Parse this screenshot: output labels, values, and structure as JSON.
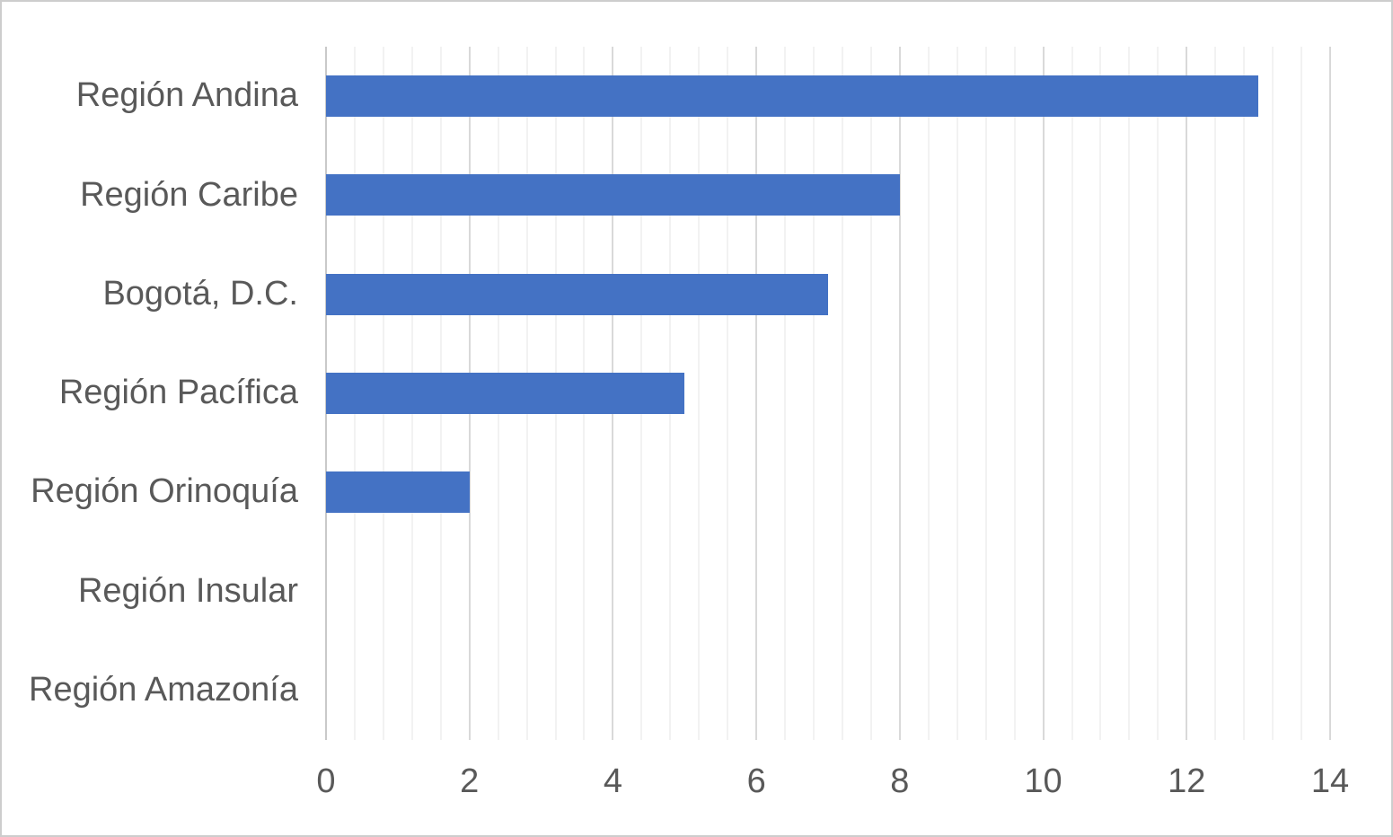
{
  "chart_data": {
    "type": "bar",
    "orientation": "horizontal",
    "title": "",
    "xlabel": "",
    "ylabel": "",
    "categories": [
      "Región Andina",
      "Región Caribe",
      "Bogotá, D.C.",
      "Región Pacífica",
      "Región Orinoquía",
      "Región Insular",
      "Región Amazonía"
    ],
    "values": [
      13,
      8,
      7,
      5,
      2,
      0,
      0
    ],
    "xlim": [
      0,
      14
    ],
    "x_major_ticks": [
      0,
      2,
      4,
      6,
      8,
      10,
      12,
      14
    ],
    "x_tick_labels": [
      "0",
      "2",
      "4",
      "6",
      "8",
      "10",
      "12",
      "14"
    ],
    "x_minor_step": 0.4,
    "grid": "vertical major and minor gridlines, no horizontal gridlines",
    "legend": "none",
    "colors": {
      "bar": "#4472C4",
      "major_gridline": "#D9D9D9",
      "minor_gridline": "#F2F2F2",
      "axis_line": "#C9C9C9",
      "label_text": "#595959",
      "background": "#FFFFFF",
      "frame_border": "#CDCDCD"
    }
  }
}
